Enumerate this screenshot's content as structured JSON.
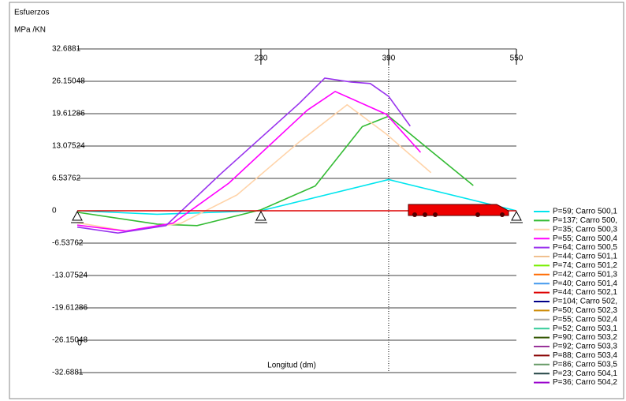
{
  "chart_data": {
    "type": "line",
    "title": "Esfuerzos",
    "y_label": "MPa /KN",
    "x_label": "Longitud  (dm)",
    "xlim": [
      0,
      550
    ],
    "xticks": [
      0,
      230,
      390,
      550
    ],
    "ylim": [
      -32.6881,
      32.6881
    ],
    "yticks": [
      32.6881,
      26.15048,
      19.61286,
      13.07524,
      6.53762,
      0,
      -6.53762,
      -13.07524,
      -19.61286,
      -26.15048,
      -32.6881
    ],
    "grid": true,
    "legend": "right",
    "series": [
      {
        "name": "P=59; Carro 500,1",
        "color": "#00e5ee",
        "x": [
          0,
          100,
          230,
          390,
          550
        ],
        "values": [
          0,
          -0.7,
          0,
          6.3,
          0
        ]
      },
      {
        "name": "P=137; Carro 500,",
        "color": "#33bb33",
        "x": [
          0,
          100,
          150,
          230,
          298,
          357,
          390,
          436,
          496
        ],
        "values": [
          -0.3,
          -2.7,
          -3,
          0.2,
          5,
          17,
          19.1,
          13,
          5.1
        ]
      },
      {
        "name": "P=35; Carro 500,3",
        "color": "#ffd3a8",
        "x": [
          0,
          61,
          130,
          200,
          278,
          338,
          387,
          443
        ],
        "values": [
          -2.4,
          -4.1,
          -2.5,
          3.2,
          13.9,
          21.4,
          15.5,
          7.7
        ]
      },
      {
        "name": "P=55; Carro 500,4",
        "color": "#ff00ff",
        "x": [
          0,
          61,
          120,
          190,
          288,
          323,
          387,
          430
        ],
        "values": [
          -2.9,
          -4.1,
          -2.5,
          5.6,
          20.3,
          24.1,
          19.5,
          11.8
        ]
      },
      {
        "name": "P=64; Carro 500,5",
        "color": "#9933ee",
        "x": [
          0,
          51,
          111,
          180,
          278,
          310,
          343,
          367,
          390,
          417
        ],
        "values": [
          -3.3,
          -4.5,
          -3,
          7.5,
          21.7,
          26.8,
          26,
          25.7,
          23.1,
          17.1
        ]
      },
      {
        "name": "P=44; Carro 501,1",
        "color": "#f0c090",
        "x": [],
        "values": []
      },
      {
        "name": "P=74; Carro 501,2",
        "color": "#77ee00",
        "x": [],
        "values": []
      },
      {
        "name": "P=42; Carro 501,3",
        "color": "#ff6a00",
        "x": [],
        "values": []
      },
      {
        "name": "P=40; Carro 501,4",
        "color": "#4499ee",
        "x": [],
        "values": []
      },
      {
        "name": "P=44; Carro 502,1",
        "color": "#dd0000",
        "x": [
          0,
          550
        ],
        "values": [
          0,
          0
        ]
      },
      {
        "name": "P=104; Carro 502,",
        "color": "#000088",
        "x": [],
        "values": []
      },
      {
        "name": "P=50; Carro 502,3",
        "color": "#cc8800",
        "x": [],
        "values": []
      },
      {
        "name": "P=55; Carro 502,4",
        "color": "#aaaaaa",
        "x": [],
        "values": []
      },
      {
        "name": "P=52; Carro 503,1",
        "color": "#33cc99",
        "x": [],
        "values": []
      },
      {
        "name": "P=90; Carro 503,2",
        "color": "#335500",
        "x": [],
        "values": []
      },
      {
        "name": "P=92; Carro 503,3",
        "color": "#993399",
        "x": [],
        "values": []
      },
      {
        "name": "P=88; Carro 503,4",
        "color": "#880000",
        "x": [],
        "values": []
      },
      {
        "name": "P=86; Carro 503,5",
        "color": "#669966",
        "x": [],
        "values": []
      },
      {
        "name": "P=23; Carro 504,1",
        "color": "#224444",
        "x": [],
        "values": []
      },
      {
        "name": "P=36; Carro 504,2",
        "color": "#9900cc",
        "x": [],
        "values": []
      }
    ]
  }
}
